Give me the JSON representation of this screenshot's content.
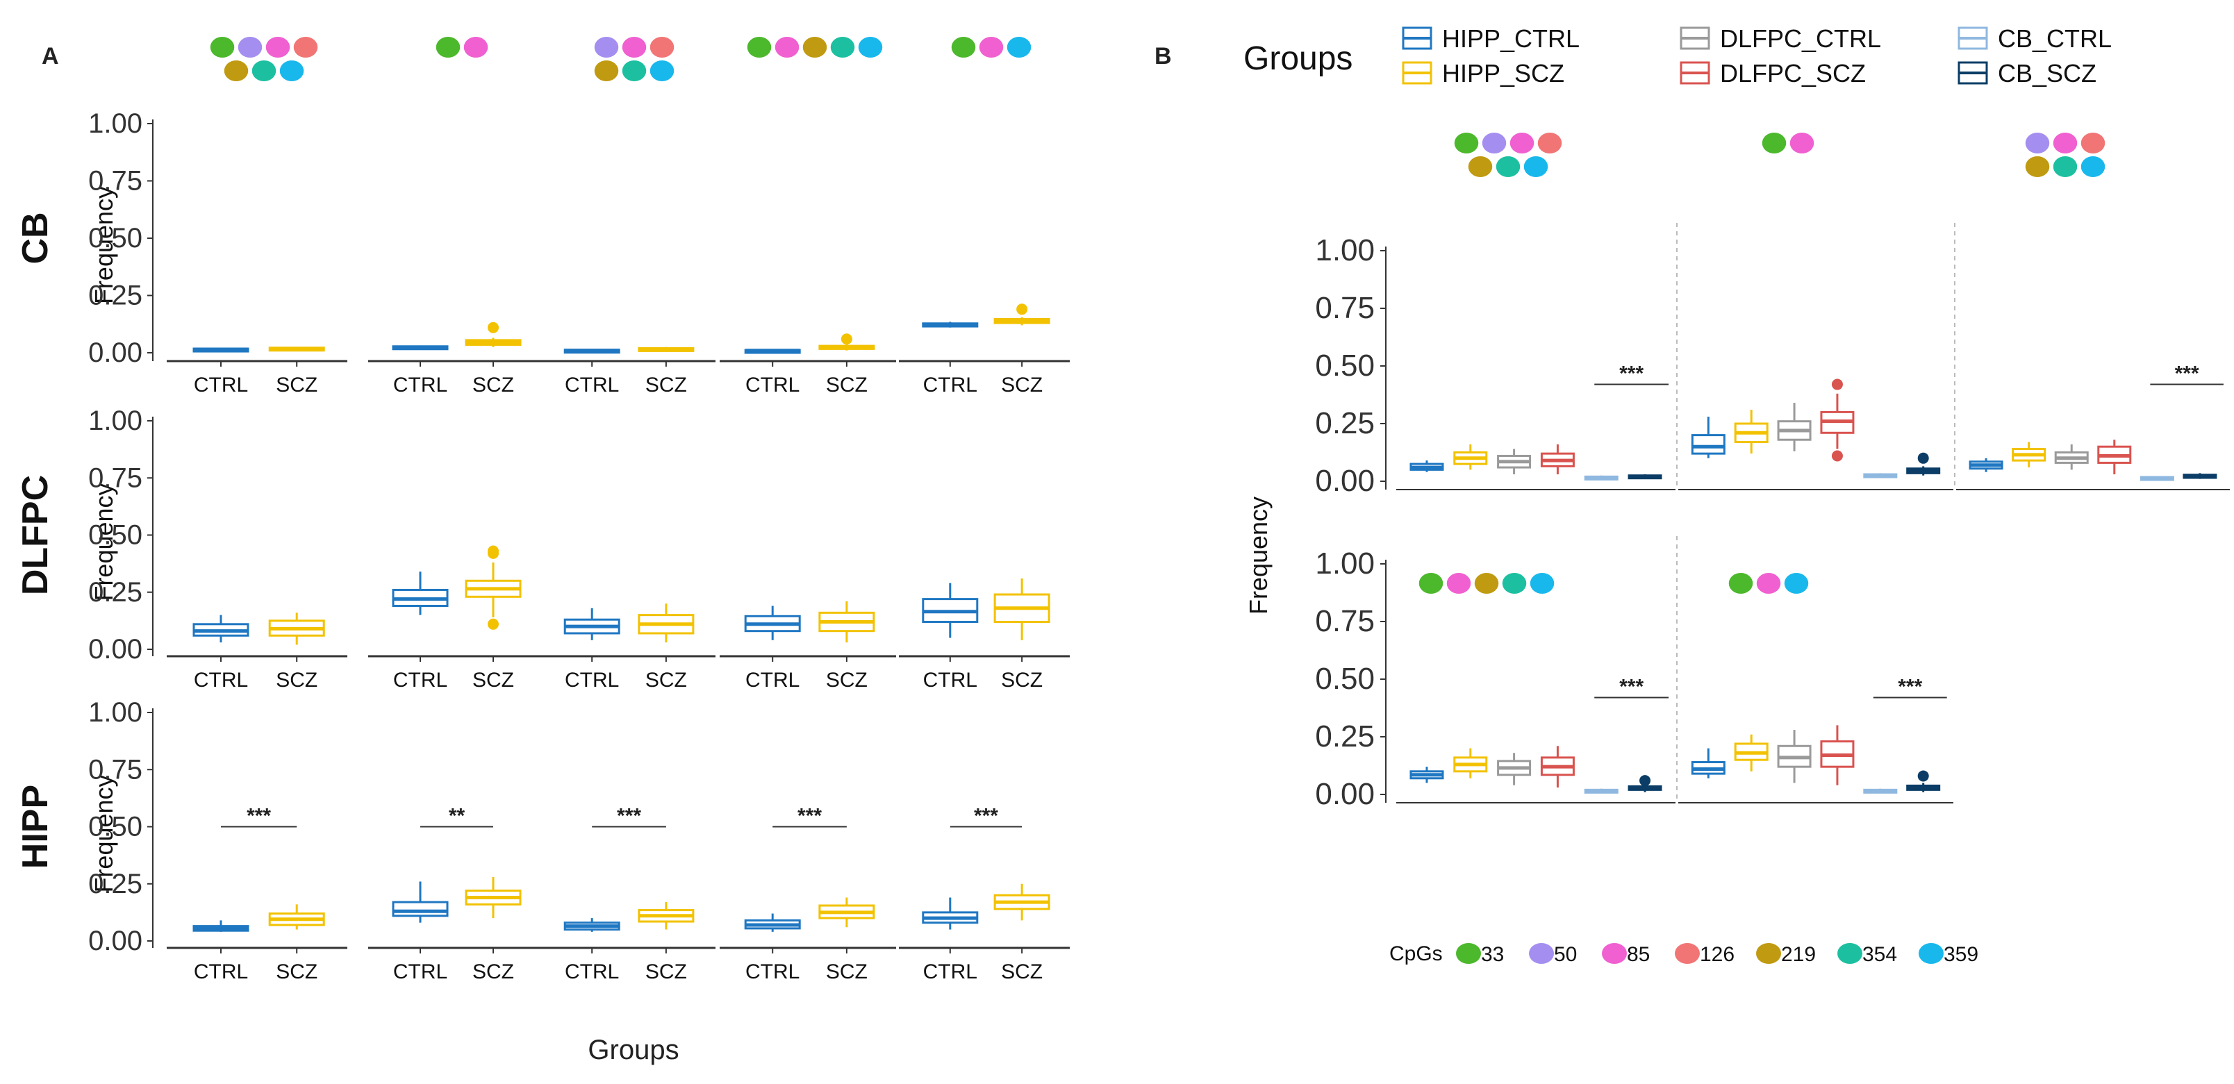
{
  "panel_labels": {
    "a": "A",
    "b": "B"
  },
  "legend": {
    "title": "Groups",
    "items": [
      {
        "label": "HIPP_CTRL",
        "color": "#1f77c2"
      },
      {
        "label": "HIPP_SCZ",
        "color": "#f2c200"
      },
      {
        "label": "DLFPC_CTRL",
        "color": "#9a9a9a"
      },
      {
        "label": "DLFPC_SCZ",
        "color": "#d9534f"
      },
      {
        "label": "CB_CTRL",
        "color": "#8fb8e0"
      },
      {
        "label": "CB_SCZ",
        "color": "#0b3d66"
      }
    ]
  },
  "cpg_legend": {
    "title": "CpGs",
    "items": [
      {
        "label": "33",
        "color": "#4cb82c"
      },
      {
        "label": "50",
        "color": "#a48ef0"
      },
      {
        "label": "85",
        "color": "#f060d0"
      },
      {
        "label": "126",
        "color": "#f27575"
      },
      {
        "label": "219",
        "color": "#c09a10"
      },
      {
        "label": "354",
        "color": "#1cc0a0"
      },
      {
        "label": "359",
        "color": "#19b8ec"
      }
    ]
  },
  "chart_data": [
    {
      "type": "box",
      "panel": "A",
      "xlabel": "Groups",
      "ylabel": "Frequency",
      "categories": [
        "CTRL",
        "SCZ"
      ],
      "category_colors": [
        "#1f77c2",
        "#f2c200"
      ],
      "ylim": [
        0,
        1
      ],
      "yticks": [
        "0.00",
        "0.25",
        "0.50",
        "0.75",
        "1.00"
      ],
      "col_cpg_sets": [
        [
          [
            "33",
            "50",
            "85",
            "126"
          ],
          [
            "219",
            "354",
            "359"
          ]
        ],
        [
          [
            "33",
            "85"
          ]
        ],
        [
          [
            "50",
            "85",
            "126"
          ],
          [
            "219",
            "354",
            "359"
          ]
        ],
        [
          [
            "33",
            "85",
            "219",
            "354",
            "359"
          ]
        ],
        [
          [
            "33",
            "85",
            "359"
          ]
        ]
      ],
      "rows": [
        {
          "label": "CB",
          "yticks": [
            "0.00",
            "0.25",
            "0.50",
            "0.75",
            "1.00"
          ],
          "cols": [
            {
              "sig": "",
              "boxes": [
                {
                  "min": 0.01,
                  "q1": 0.012,
                  "med": 0.015,
                  "q3": 0.018,
                  "max": 0.02,
                  "out": []
                },
                {
                  "min": 0.01,
                  "q1": 0.015,
                  "med": 0.018,
                  "q3": 0.022,
                  "max": 0.025,
                  "out": []
                }
              ]
            },
            {
              "sig": "",
              "boxes": [
                {
                  "min": 0.015,
                  "q1": 0.02,
                  "med": 0.024,
                  "q3": 0.028,
                  "max": 0.032,
                  "out": []
                },
                {
                  "min": 0.025,
                  "q1": 0.035,
                  "med": 0.045,
                  "q3": 0.055,
                  "max": 0.065,
                  "out": [
                    0.11
                  ]
                }
              ]
            },
            {
              "sig": "",
              "boxes": [
                {
                  "min": 0.005,
                  "q1": 0.008,
                  "med": 0.01,
                  "q3": 0.013,
                  "max": 0.015,
                  "out": []
                },
                {
                  "min": 0.008,
                  "q1": 0.012,
                  "med": 0.015,
                  "q3": 0.02,
                  "max": 0.025,
                  "out": []
                }
              ]
            },
            {
              "sig": "",
              "boxes": [
                {
                  "min": 0.005,
                  "q1": 0.008,
                  "med": 0.01,
                  "q3": 0.012,
                  "max": 0.015,
                  "out": []
                },
                {
                  "min": 0.01,
                  "q1": 0.017,
                  "med": 0.022,
                  "q3": 0.03,
                  "max": 0.038,
                  "out": [
                    0.06
                  ]
                }
              ]
            },
            {
              "sig": "",
              "boxes": [
                {
                  "min": 0.11,
                  "q1": 0.115,
                  "med": 0.122,
                  "q3": 0.128,
                  "max": 0.135,
                  "out": []
                },
                {
                  "min": 0.12,
                  "q1": 0.13,
                  "med": 0.138,
                  "q3": 0.147,
                  "max": 0.155,
                  "out": [
                    0.19
                  ]
                }
              ]
            }
          ]
        },
        {
          "label": "DLFPC",
          "yticks": [
            "0.00",
            "0.25",
            "0.50",
            "0.75",
            "1.00"
          ],
          "cols": [
            {
              "sig": "",
              "boxes": [
                {
                  "min": 0.03,
                  "q1": 0.06,
                  "med": 0.08,
                  "q3": 0.11,
                  "max": 0.15,
                  "out": []
                },
                {
                  "min": 0.02,
                  "q1": 0.06,
                  "med": 0.09,
                  "q3": 0.125,
                  "max": 0.16,
                  "out": []
                }
              ]
            },
            {
              "sig": "",
              "boxes": [
                {
                  "min": 0.15,
                  "q1": 0.19,
                  "med": 0.22,
                  "q3": 0.26,
                  "max": 0.34,
                  "out": []
                },
                {
                  "min": 0.14,
                  "q1": 0.23,
                  "med": 0.265,
                  "q3": 0.3,
                  "max": 0.38,
                  "out": [
                    0.42,
                    0.43,
                    0.11
                  ]
                }
              ]
            },
            {
              "sig": "",
              "boxes": [
                {
                  "min": 0.04,
                  "q1": 0.07,
                  "med": 0.1,
                  "q3": 0.13,
                  "max": 0.18,
                  "out": []
                },
                {
                  "min": 0.03,
                  "q1": 0.07,
                  "med": 0.11,
                  "q3": 0.15,
                  "max": 0.2,
                  "out": []
                }
              ]
            },
            {
              "sig": "",
              "boxes": [
                {
                  "min": 0.04,
                  "q1": 0.08,
                  "med": 0.11,
                  "q3": 0.145,
                  "max": 0.19,
                  "out": []
                },
                {
                  "min": 0.03,
                  "q1": 0.08,
                  "med": 0.12,
                  "q3": 0.16,
                  "max": 0.21,
                  "out": []
                }
              ]
            },
            {
              "sig": "",
              "boxes": [
                {
                  "min": 0.05,
                  "q1": 0.12,
                  "med": 0.165,
                  "q3": 0.22,
                  "max": 0.29,
                  "out": []
                },
                {
                  "min": 0.04,
                  "q1": 0.12,
                  "med": 0.18,
                  "q3": 0.24,
                  "max": 0.31,
                  "out": []
                }
              ]
            }
          ]
        },
        {
          "label": "HIPP",
          "yticks": [
            "0.00",
            "0.25",
            "0.50",
            "0.75",
            "1.00"
          ],
          "cols": [
            {
              "sig": "***",
              "boxes": [
                {
                  "min": 0.04,
                  "q1": 0.045,
                  "med": 0.055,
                  "q3": 0.065,
                  "max": 0.09,
                  "out": []
                },
                {
                  "min": 0.05,
                  "q1": 0.07,
                  "med": 0.095,
                  "q3": 0.12,
                  "max": 0.16,
                  "out": []
                }
              ]
            },
            {
              "sig": "**",
              "boxes": [
                {
                  "min": 0.08,
                  "q1": 0.11,
                  "med": 0.13,
                  "q3": 0.17,
                  "max": 0.26,
                  "out": []
                },
                {
                  "min": 0.1,
                  "q1": 0.16,
                  "med": 0.19,
                  "q3": 0.22,
                  "max": 0.28,
                  "out": []
                }
              ]
            },
            {
              "sig": "***",
              "boxes": [
                {
                  "min": 0.04,
                  "q1": 0.05,
                  "med": 0.065,
                  "q3": 0.08,
                  "max": 0.1,
                  "out": []
                },
                {
                  "min": 0.05,
                  "q1": 0.085,
                  "med": 0.11,
                  "q3": 0.135,
                  "max": 0.17,
                  "out": []
                }
              ]
            },
            {
              "sig": "***",
              "boxes": [
                {
                  "min": 0.04,
                  "q1": 0.055,
                  "med": 0.07,
                  "q3": 0.09,
                  "max": 0.12,
                  "out": []
                },
                {
                  "min": 0.06,
                  "q1": 0.1,
                  "med": 0.125,
                  "q3": 0.155,
                  "max": 0.19,
                  "out": []
                }
              ]
            },
            {
              "sig": "***",
              "boxes": [
                {
                  "min": 0.05,
                  "q1": 0.08,
                  "med": 0.1,
                  "q3": 0.125,
                  "max": 0.19,
                  "out": []
                },
                {
                  "min": 0.09,
                  "q1": 0.14,
                  "med": 0.17,
                  "q3": 0.2,
                  "max": 0.25,
                  "out": []
                }
              ]
            }
          ]
        }
      ]
    },
    {
      "type": "box",
      "panel": "B",
      "ylabel": "Frequency",
      "ylim": [
        0,
        1
      ],
      "yticks": [
        "0.00",
        "0.25",
        "0.50",
        "0.75",
        "1.00"
      ],
      "groups": [
        "HIPP_CTRL",
        "HIPP_SCZ",
        "DLFPC_CTRL",
        "DLFPC_SCZ",
        "CB_CTRL",
        "CB_SCZ"
      ],
      "facets": [
        {
          "cpg_rows": [
            [
              "33",
              "50",
              "85",
              "126"
            ],
            [
              "219",
              "354",
              "359"
            ]
          ],
          "sig": "***",
          "boxes": [
            {
              "min": 0.04,
              "q1": 0.05,
              "med": 0.06,
              "q3": 0.075,
              "max": 0.09,
              "out": []
            },
            {
              "min": 0.05,
              "q1": 0.075,
              "med": 0.1,
              "q3": 0.125,
              "max": 0.16,
              "out": []
            },
            {
              "min": 0.03,
              "q1": 0.06,
              "med": 0.085,
              "q3": 0.11,
              "max": 0.14,
              "out": []
            },
            {
              "min": 0.03,
              "q1": 0.065,
              "med": 0.09,
              "q3": 0.12,
              "max": 0.16,
              "out": []
            },
            {
              "min": 0.005,
              "q1": 0.01,
              "med": 0.015,
              "q3": 0.02,
              "max": 0.025,
              "out": []
            },
            {
              "min": 0.01,
              "q1": 0.015,
              "med": 0.02,
              "q3": 0.025,
              "max": 0.03,
              "out": []
            }
          ]
        },
        {
          "cpg_rows": [
            [
              "33",
              "85"
            ]
          ],
          "sig": "",
          "boxes": [
            {
              "min": 0.1,
              "q1": 0.12,
              "med": 0.15,
              "q3": 0.2,
              "max": 0.28,
              "out": []
            },
            {
              "min": 0.12,
              "q1": 0.17,
              "med": 0.21,
              "q3": 0.25,
              "max": 0.31,
              "out": []
            },
            {
              "min": 0.13,
              "q1": 0.18,
              "med": 0.22,
              "q3": 0.26,
              "max": 0.34,
              "out": []
            },
            {
              "min": 0.14,
              "q1": 0.21,
              "med": 0.26,
              "q3": 0.3,
              "max": 0.38,
              "out": [
                0.42,
                0.11
              ]
            },
            {
              "min": 0.015,
              "q1": 0.02,
              "med": 0.025,
              "q3": 0.03,
              "max": 0.035,
              "out": []
            },
            {
              "min": 0.025,
              "q1": 0.035,
              "med": 0.045,
              "q3": 0.055,
              "max": 0.065,
              "out": [
                0.1
              ]
            }
          ]
        },
        {
          "cpg_rows": [
            [
              "50",
              "85",
              "126"
            ],
            [
              "219",
              "354",
              "359"
            ]
          ],
          "sig": "***",
          "boxes": [
            {
              "min": 0.04,
              "q1": 0.055,
              "med": 0.07,
              "q3": 0.085,
              "max": 0.1,
              "out": []
            },
            {
              "min": 0.06,
              "q1": 0.09,
              "med": 0.115,
              "q3": 0.14,
              "max": 0.17,
              "out": []
            },
            {
              "min": 0.05,
              "q1": 0.08,
              "med": 0.1,
              "q3": 0.125,
              "max": 0.16,
              "out": []
            },
            {
              "min": 0.03,
              "q1": 0.08,
              "med": 0.11,
              "q3": 0.15,
              "max": 0.18,
              "out": []
            },
            {
              "min": 0.005,
              "q1": 0.01,
              "med": 0.015,
              "q3": 0.018,
              "max": 0.022,
              "out": []
            },
            {
              "min": 0.01,
              "q1": 0.015,
              "med": 0.02,
              "q3": 0.028,
              "max": 0.035,
              "out": []
            }
          ]
        },
        {
          "cpg_rows": [
            [
              "33",
              "85",
              "219",
              "354",
              "359"
            ]
          ],
          "sig": "***",
          "boxes": [
            {
              "min": 0.05,
              "q1": 0.07,
              "med": 0.085,
              "q3": 0.1,
              "max": 0.12,
              "out": []
            },
            {
              "min": 0.07,
              "q1": 0.1,
              "med": 0.13,
              "q3": 0.16,
              "max": 0.2,
              "out": []
            },
            {
              "min": 0.04,
              "q1": 0.085,
              "med": 0.115,
              "q3": 0.145,
              "max": 0.18,
              "out": []
            },
            {
              "min": 0.03,
              "q1": 0.085,
              "med": 0.12,
              "q3": 0.16,
              "max": 0.21,
              "out": []
            },
            {
              "min": 0.005,
              "q1": 0.01,
              "med": 0.015,
              "q3": 0.02,
              "max": 0.025,
              "out": []
            },
            {
              "min": 0.01,
              "q1": 0.02,
              "med": 0.028,
              "q3": 0.035,
              "max": 0.045,
              "out": [
                0.06
              ]
            }
          ]
        },
        {
          "cpg_rows": [
            [
              "33",
              "85",
              "359"
            ]
          ],
          "sig": "***",
          "boxes": [
            {
              "min": 0.07,
              "q1": 0.09,
              "med": 0.11,
              "q3": 0.14,
              "max": 0.2,
              "out": []
            },
            {
              "min": 0.1,
              "q1": 0.15,
              "med": 0.18,
              "q3": 0.22,
              "max": 0.26,
              "out": []
            },
            {
              "min": 0.05,
              "q1": 0.12,
              "med": 0.16,
              "q3": 0.21,
              "max": 0.28,
              "out": []
            },
            {
              "min": 0.04,
              "q1": 0.12,
              "med": 0.17,
              "q3": 0.23,
              "max": 0.3,
              "out": []
            },
            {
              "min": 0.005,
              "q1": 0.01,
              "med": 0.015,
              "q3": 0.02,
              "max": 0.025,
              "out": []
            },
            {
              "min": 0.01,
              "q1": 0.02,
              "med": 0.028,
              "q3": 0.038,
              "max": 0.05,
              "out": [
                0.08
              ]
            }
          ]
        }
      ]
    }
  ]
}
